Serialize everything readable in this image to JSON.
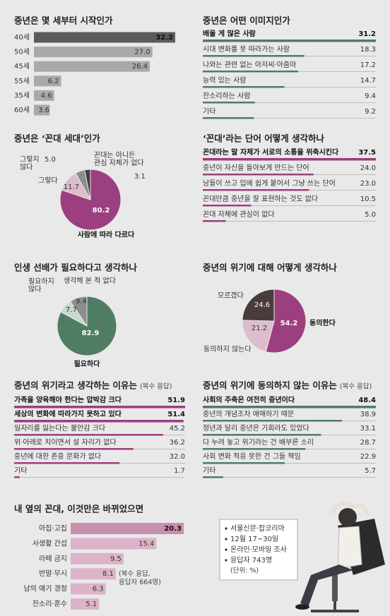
{
  "chart_data": [
    {
      "type": "bar",
      "title": "중년은 몇 세부터 시작인가",
      "categories": [
        "40세",
        "50세",
        "45세",
        "55세",
        "35세",
        "60세"
      ],
      "values": [
        32.2,
        27.0,
        26.4,
        6.2,
        4.6,
        3.6
      ],
      "value_labels": [
        "32.2",
        "27.0",
        "26.4",
        "6.2",
        "4.6",
        "3.6"
      ],
      "colors": [
        "#5b5b5b",
        "#a9a9a9",
        "#a9a9a9",
        "#a9a9a9",
        "#a9a9a9",
        "#a9a9a9"
      ],
      "bold": [
        true,
        false,
        false,
        false,
        false,
        false
      ]
    },
    {
      "type": "bar",
      "title": "중년은 어떤 이미지인가",
      "categories": [
        "배울 게 많은 사람",
        "시대 변화를 못 따라가는 사람",
        "나와는 관련 없는 아저씨·아줌마",
        "능력 있는 사람",
        "잔소리하는 사람",
        "기타"
      ],
      "values": [
        31.2,
        18.3,
        17.2,
        14.7,
        9.4,
        9.2
      ],
      "value_labels": [
        "31.2",
        "18.3",
        "17.2",
        "14.7",
        "9.4",
        "9.2"
      ],
      "color": "#4e7d63",
      "bold": [
        true,
        false,
        false,
        false,
        false,
        false
      ]
    },
    {
      "type": "pie",
      "title": "중년은 ‘꼰대 세대’인가",
      "categories": [
        "사람에 따라 다르다",
        "그렇다",
        "그렇지 않다",
        "꼰대는 아니든 관심 자체가 없다"
      ],
      "values": [
        80.2,
        11.7,
        5.0,
        3.1
      ],
      "value_labels": [
        "80.2",
        "11.7",
        "5.0",
        "3.1"
      ],
      "colors": [
        "#9c3f7f",
        "#dcbccd",
        "#8d8d8d",
        "#4a3b3d"
      ]
    },
    {
      "type": "bar",
      "title": "‘꼰대’라는 단어 어떻게 생각하나",
      "categories": [
        "꼰대라는 말 자체가 서로의 소통을 위축시킨다",
        "중년이 자신을 돌아보게 만드는 단어",
        "남들이 쓰고 입에 쉽게 붙어서 그냥 쓰는 단어",
        "꼰대만큼 중년을 잘 표현하는 것도 없다",
        "꼰대 자체에 관심이 없다"
      ],
      "values": [
        37.5,
        24.0,
        23.0,
        10.5,
        5.0
      ],
      "value_labels": [
        "37.5",
        "24.0",
        "23.0",
        "10.5",
        "5.0"
      ],
      "color": "#9c3f7f",
      "bold": [
        true,
        false,
        false,
        false,
        false
      ]
    },
    {
      "type": "pie",
      "title": "인생 선배가 필요하다고 생각하나",
      "categories": [
        "필요하다",
        "필요하지 않다",
        "생각해 본 적 없다"
      ],
      "values": [
        82.9,
        7.7,
        9.4
      ],
      "value_labels": [
        "82.9",
        "7.7",
        "9.4"
      ],
      "colors": [
        "#4e7d63",
        "#c9d8ce",
        "#8d8d8d"
      ]
    },
    {
      "type": "pie",
      "title": "중년의 위기에 대해 어떻게 생각하나",
      "categories": [
        "동의한다",
        "동의하지 않는다",
        "모르겠다"
      ],
      "values": [
        54.2,
        21.2,
        24.6
      ],
      "value_labels": [
        "54.2",
        "21.2",
        "24.6"
      ],
      "colors": [
        "#9c3f7f",
        "#dcbccd",
        "#4a3b3d"
      ]
    },
    {
      "type": "bar",
      "title": "중년의 위기라고 생각하는 이유는",
      "subtitle": "(복수 응답)",
      "categories": [
        "가족을 양육해야 한다는 압박감 크다",
        "세상의 변화에 따라가지 못하고 있다",
        "일자리를 잃는다는 불안감 크다",
        "위·아래로 치이면서 설 자리가 없다",
        "중년에 대한 존중 문화가 없다",
        "기타"
      ],
      "values": [
        51.9,
        51.4,
        45.2,
        36.2,
        32.0,
        1.7
      ],
      "value_labels": [
        "51.9",
        "51.4",
        "45.2",
        "36.2",
        "32.0",
        "1.7"
      ],
      "color": "#9c3f7f",
      "bold": [
        true,
        true,
        false,
        false,
        false,
        false
      ]
    },
    {
      "type": "bar",
      "title": "중년의 위기에 동의하지 않는 이유는",
      "subtitle": "(복수 응답)",
      "categories": [
        "사회의 주축은 여전히 중년이다",
        "중년의 개념조차 애매하기 때문",
        "청년과 달리 중년은 기회라도 있었다",
        "다 누려 놓고 위기라는 건 배부른 소리",
        "사회 변화 적응 못한 건 그들 책임",
        "기타"
      ],
      "values": [
        48.4,
        38.9,
        33.1,
        28.7,
        22.9,
        5.7
      ],
      "value_labels": [
        "48.4",
        "38.9",
        "33.1",
        "28.7",
        "22.9",
        "5.7"
      ],
      "color": "#4e7d63",
      "bold": [
        true,
        false,
        false,
        false,
        false,
        false
      ]
    },
    {
      "type": "bar",
      "title": "내 옆의 꼰대, 이것만은 바뀌었으면",
      "annotation": "(복수 응답, 응답자 664명)",
      "categories": [
        "아집·고집",
        "사생활 간섭",
        "라떼 금지",
        "반말·무시",
        "남의 얘기 경청",
        "잔소리·훈수"
      ],
      "values": [
        20.3,
        15.4,
        9.5,
        8.1,
        6.3,
        5.1
      ],
      "value_labels": [
        "20.3",
        "15.4",
        "9.5",
        "8.1",
        "6.3",
        "5.1"
      ],
      "colors": [
        "#c98fae",
        "#dcb3c8",
        "#dcb3c8",
        "#dcb3c8",
        "#dcb3c8",
        "#dcb3c8"
      ],
      "bold": [
        true,
        false,
        false,
        false,
        false,
        false
      ]
    }
  ],
  "notes": {
    "items": [
      "서울신문·잡코리아",
      "12월 17~30일",
      "온라인·모바일 조사",
      "응답자 743명"
    ],
    "unit": "(단위: %)"
  }
}
